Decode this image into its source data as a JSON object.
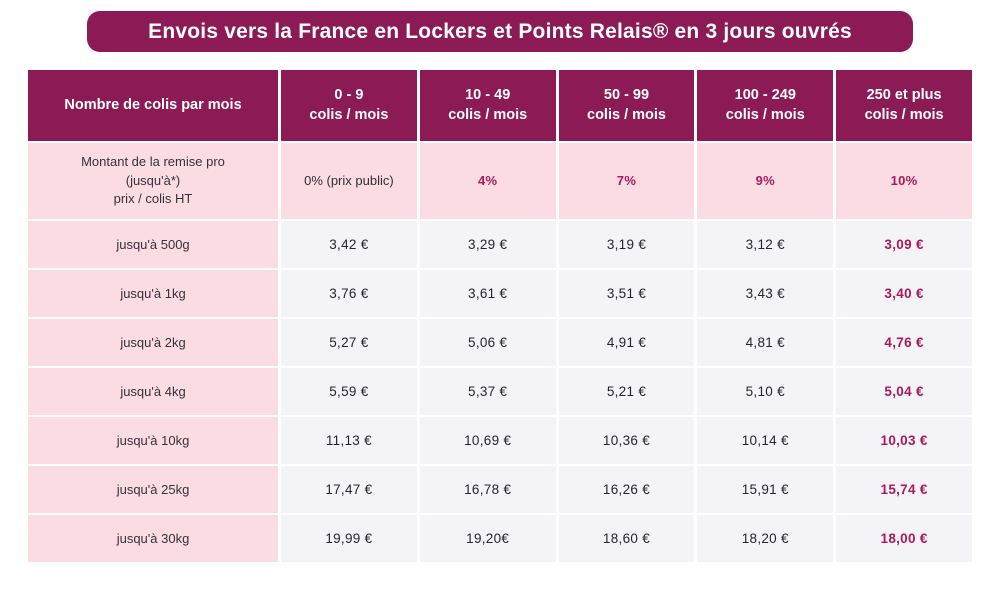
{
  "banner": {
    "title": "Envois vers la France en Lockers et Points Relais® en 3 jours ouvrés"
  },
  "colors": {
    "burgundy": "#8c1a54",
    "pink": "#fbdce3",
    "cell_gray": "#f4f3f7",
    "accent_magenta": "#a81a5b",
    "text_dark": "#26252d",
    "white": "#ffffff"
  },
  "table": {
    "header": {
      "col0": "Nombre de colis par mois",
      "cols": [
        {
          "line1": "0 - 9",
          "line2": "colis / mois"
        },
        {
          "line1": "10 - 49",
          "line2": "colis / mois"
        },
        {
          "line1": "50 - 99",
          "line2": "colis / mois"
        },
        {
          "line1": "100 - 249",
          "line2": "colis / mois"
        },
        {
          "line1": "250 et plus",
          "line2": "colis / mois"
        }
      ]
    },
    "discount_row": {
      "label_line1": "Montant de la remise pro",
      "label_line2": "(jusqu'à*)",
      "label_line3": "prix / colis HT",
      "values": [
        "0% (prix public)",
        "4%",
        "7%",
        "9%",
        "10%"
      ]
    },
    "rows": [
      {
        "label": "jusqu'à 500g",
        "values": [
          "3,42 €",
          "3,29 €",
          "3,19 €",
          "3,12 €",
          "3,09 €"
        ]
      },
      {
        "label": "jusqu'à 1kg",
        "values": [
          "3,76 €",
          "3,61 €",
          "3,51 €",
          "3,43 €",
          "3,40 €"
        ]
      },
      {
        "label": "jusqu'à 2kg",
        "values": [
          "5,27 €",
          "5,06 €",
          "4,91 €",
          "4,81 €",
          "4,76 €"
        ]
      },
      {
        "label": "jusqu'à 4kg",
        "values": [
          "5,59 €",
          "5,37 €",
          "5,21 €",
          "5,10 €",
          "5,04 €"
        ]
      },
      {
        "label": "jusqu'à 10kg",
        "values": [
          "11,13 €",
          "10,69 €",
          "10,36 €",
          "10,14 €",
          "10,03 €"
        ]
      },
      {
        "label": "jusqu'à 25kg",
        "values": [
          "17,47 €",
          "16,78 €",
          "16,26 €",
          "15,91 €",
          "15,74 €"
        ]
      },
      {
        "label": "jusqu'à 30kg",
        "values": [
          "19,99 €",
          "19,20€",
          "18,60 €",
          "18,20 €",
          "18,00 €"
        ]
      }
    ]
  }
}
